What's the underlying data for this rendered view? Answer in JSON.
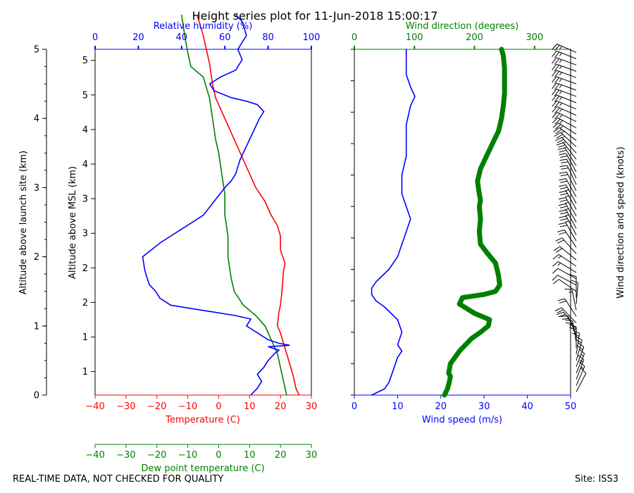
{
  "title": "Height series plot for 11-Jun-2018 15:00:17",
  "footer": {
    "quality_note": "REAL-TIME DATA, NOT CHECKED FOR QUALITY",
    "site": "Site: ISS3"
  },
  "colors": {
    "temperature": "#ff0000",
    "dewpoint": "#008000",
    "humidity": "#0000ff",
    "wind_speed": "#0000ff",
    "wind_direction": "#008000",
    "barbs": "#000000"
  },
  "chart_data": [
    {
      "type": "line",
      "name": "thermodynamic-panel",
      "left_axis": {
        "label": "Altitude above launch site (km)",
        "ylim": [
          0,
          5
        ],
        "ticks": [
          0,
          1,
          2,
          3,
          4,
          5
        ],
        "tick_labels": [
          "0",
          "1",
          "2",
          "3",
          "4",
          "5"
        ]
      },
      "inner_axis": {
        "label": "Altitude above MSL (km)",
        "ylim": [
          1.16,
          6.16
        ],
        "ticks": [
          1.5,
          2,
          2.5,
          3,
          3.5,
          4,
          4.5,
          5,
          5.5,
          6
        ],
        "tick_labels": [
          "1",
          "1",
          "2",
          "2",
          "3",
          "3",
          "4",
          "4",
          "5",
          "5"
        ]
      },
      "x_axes": [
        {
          "name": "temperature",
          "label": "Temperature (C)",
          "xlim": [
            -40,
            30
          ],
          "ticks": [
            -40,
            -30,
            -20,
            -10,
            0,
            10,
            20,
            30
          ],
          "tick_labels": [
            "−40",
            "−30",
            "−20",
            "−10",
            "0",
            "10",
            "20",
            "30"
          ]
        },
        {
          "name": "humidity",
          "label": "Relative humidity (%)",
          "xlim": [
            0,
            100
          ],
          "ticks": [
            0,
            20,
            40,
            60,
            80,
            100
          ],
          "tick_labels": [
            "0",
            "20",
            "40",
            "60",
            "80",
            "100"
          ]
        },
        {
          "name": "dewpoint",
          "label": "Dew point temperature (C)",
          "xlim": [
            -40,
            30
          ],
          "ticks": [
            -40,
            -30,
            -20,
            -10,
            0,
            10,
            20,
            30
          ],
          "tick_labels": [
            "−40",
            "−30",
            "−20",
            "−10",
            "0",
            "10",
            "20",
            "30"
          ]
        }
      ],
      "series": [
        {
          "name": "Temperature",
          "axis": "temperature",
          "points": [
            [
              26,
              0
            ],
            [
              25,
              0.1
            ],
            [
              24,
              0.3
            ],
            [
              22,
              0.6
            ],
            [
              20,
              0.9
            ],
            [
              19,
              1.0
            ],
            [
              19.5,
              1.2
            ],
            [
              20,
              1.3
            ],
            [
              20.5,
              1.5
            ],
            [
              21,
              1.8
            ],
            [
              21.5,
              1.9
            ],
            [
              20,
              2.1
            ],
            [
              20,
              2.3
            ],
            [
              19,
              2.45
            ],
            [
              17,
              2.6
            ],
            [
              15,
              2.8
            ],
            [
              12,
              3.0
            ],
            [
              10,
              3.2
            ],
            [
              7,
              3.5
            ],
            [
              5,
              3.7
            ],
            [
              3,
              3.9
            ],
            [
              1,
              4.1
            ],
            [
              -1,
              4.3
            ],
            [
              -2,
              4.5
            ],
            [
              -3,
              4.8
            ],
            [
              -4,
              5.0
            ],
            [
              -5,
              5.2
            ],
            [
              -7,
              5.5
            ]
          ]
        },
        {
          "name": "Dew point",
          "axis": "dewpoint",
          "points": [
            [
              22,
              0
            ],
            [
              21,
              0.2
            ],
            [
              20,
              0.4
            ],
            [
              19,
              0.6
            ],
            [
              17,
              0.8
            ],
            [
              15,
              1.0
            ],
            [
              12,
              1.15
            ],
            [
              8,
              1.3
            ],
            [
              5,
              1.5
            ],
            [
              4,
              1.7
            ],
            [
              3,
              2.0
            ],
            [
              3,
              2.3
            ],
            [
              2,
              2.6
            ],
            [
              2,
              2.9
            ],
            [
              1,
              3.2
            ],
            [
              0,
              3.5
            ],
            [
              -1,
              3.7
            ],
            [
              -2,
              4.0
            ],
            [
              -3,
              4.3
            ],
            [
              -4,
              4.45
            ],
            [
              -5,
              4.6
            ],
            [
              -9,
              4.75
            ],
            [
              -10,
              4.95
            ],
            [
              -11,
              5.2
            ],
            [
              -12,
              5.5
            ]
          ]
        },
        {
          "name": "Relative humidity",
          "axis": "humidity",
          "points": [
            [
              72,
              0
            ],
            [
              75,
              0.1
            ],
            [
              77,
              0.2
            ],
            [
              75,
              0.3
            ],
            [
              78,
              0.4
            ],
            [
              80,
              0.5
            ],
            [
              83,
              0.6
            ],
            [
              85,
              0.65
            ],
            [
              80,
              0.7
            ],
            [
              90,
              0.72
            ],
            [
              85,
              0.75
            ],
            [
              80,
              0.8
            ],
            [
              75,
              0.9
            ],
            [
              70,
              1.0
            ],
            [
              72,
              1.1
            ],
            [
              65,
              1.15
            ],
            [
              55,
              1.2
            ],
            [
              45,
              1.25
            ],
            [
              35,
              1.3
            ],
            [
              30,
              1.4
            ],
            [
              28,
              1.5
            ],
            [
              25,
              1.6
            ],
            [
              23,
              1.8
            ],
            [
              22,
              2.0
            ],
            [
              30,
              2.2
            ],
            [
              40,
              2.4
            ],
            [
              50,
              2.6
            ],
            [
              55,
              2.8
            ],
            [
              60,
              3.0
            ],
            [
              63,
              3.1
            ],
            [
              65,
              3.2
            ],
            [
              67,
              3.4
            ],
            [
              70,
              3.6
            ],
            [
              73,
              3.8
            ],
            [
              76,
              4.0
            ],
            [
              78,
              4.1
            ],
            [
              75,
              4.2
            ],
            [
              70,
              4.25
            ],
            [
              63,
              4.3
            ],
            [
              55,
              4.4
            ],
            [
              53,
              4.5
            ],
            [
              58,
              4.6
            ],
            [
              65,
              4.7
            ],
            [
              68,
              4.85
            ],
            [
              66,
              5.0
            ],
            [
              70,
              5.2
            ],
            [
              68,
              5.4
            ],
            [
              65,
              5.5
            ]
          ]
        }
      ]
    },
    {
      "type": "line",
      "name": "wind-panel",
      "y_range": [
        0,
        5.5
      ],
      "x_axes": [
        {
          "name": "wind_speed",
          "label": "Wind speed (m/s)",
          "xlim": [
            0,
            50
          ],
          "ticks": [
            0,
            10,
            20,
            30,
            40,
            50
          ],
          "tick_labels": [
            "0",
            "10",
            "20",
            "30",
            "40",
            "50"
          ]
        },
        {
          "name": "wind_direction",
          "label": "Wind direction (degrees)",
          "xlim": [
            0,
            360
          ],
          "ticks": [
            0,
            100,
            200,
            300
          ],
          "tick_labels": [
            "0",
            "100",
            "200",
            "300"
          ]
        }
      ],
      "series": [
        {
          "name": "Wind speed",
          "axis": "wind_speed",
          "points": [
            [
              4,
              0
            ],
            [
              7,
              0.1
            ],
            [
              8,
              0.2
            ],
            [
              9,
              0.4
            ],
            [
              10,
              0.6
            ],
            [
              11,
              0.7
            ],
            [
              10,
              0.8
            ],
            [
              11,
              1.0
            ],
            [
              10,
              1.2
            ],
            [
              7,
              1.4
            ],
            [
              5,
              1.5
            ],
            [
              4,
              1.6
            ],
            [
              4,
              1.7
            ],
            [
              5,
              1.8
            ],
            [
              8,
              2.0
            ],
            [
              10,
              2.2
            ],
            [
              11,
              2.4
            ],
            [
              12,
              2.6
            ],
            [
              13,
              2.8
            ],
            [
              12,
              3.0
            ],
            [
              11,
              3.2
            ],
            [
              11,
              3.5
            ],
            [
              12,
              3.8
            ],
            [
              12,
              4.0
            ],
            [
              12,
              4.3
            ],
            [
              13,
              4.6
            ],
            [
              14,
              4.75
            ],
            [
              13,
              4.9
            ],
            [
              12,
              5.1
            ],
            [
              12,
              5.3
            ],
            [
              12,
              5.5
            ]
          ]
        },
        {
          "name": "Wind direction",
          "axis": "wind_direction",
          "points": [
            [
              150,
              0
            ],
            [
              155,
              0.1
            ],
            [
              158,
              0.2
            ],
            [
              160,
              0.3
            ],
            [
              157,
              0.35
            ],
            [
              160,
              0.5
            ],
            [
              175,
              0.7
            ],
            [
              195,
              0.9
            ],
            [
              210,
              1.0
            ],
            [
              223,
              1.1
            ],
            [
              225,
              1.2
            ],
            [
              200,
              1.3
            ],
            [
              175,
              1.45
            ],
            [
              180,
              1.55
            ],
            [
              215,
              1.6
            ],
            [
              235,
              1.65
            ],
            [
              242,
              1.75
            ],
            [
              240,
              1.9
            ],
            [
              235,
              2.1
            ],
            [
              222,
              2.25
            ],
            [
              210,
              2.4
            ],
            [
              208,
              2.6
            ],
            [
              210,
              2.8
            ],
            [
              208,
              3.0
            ],
            [
              210,
              3.1
            ],
            [
              208,
              3.2
            ],
            [
              205,
              3.4
            ],
            [
              210,
              3.6
            ],
            [
              220,
              3.8
            ],
            [
              230,
              4.0
            ],
            [
              240,
              4.2
            ],
            [
              245,
              4.4
            ],
            [
              248,
              4.6
            ],
            [
              250,
              4.8
            ],
            [
              250,
              5.0
            ],
            [
              250,
              5.2
            ],
            [
              248,
              5.4
            ],
            [
              245,
              5.5
            ]
          ]
        }
      ],
      "barbs_label": "Wind direction and speed (knots)"
    }
  ]
}
